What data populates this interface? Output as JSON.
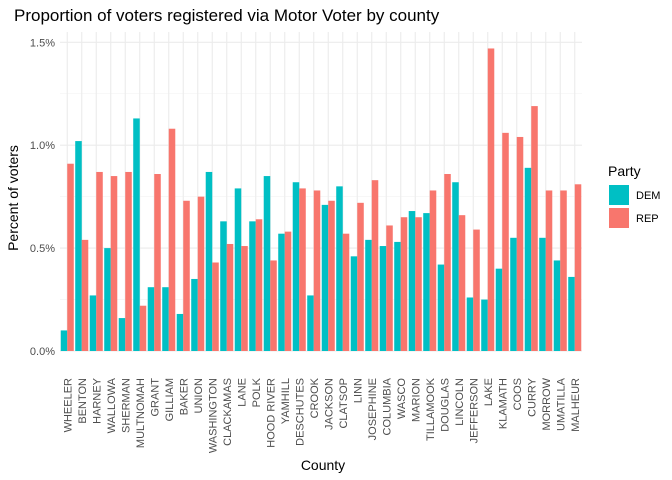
{
  "chart_data": {
    "type": "bar",
    "title": "Proportion of voters registered via Motor Voter by county",
    "xlabel": "County",
    "ylabel": "Percent of voters",
    "ylim": [
      0,
      1.55
    ],
    "y_ticks": [
      {
        "value": 0,
        "label": "0.0%"
      },
      {
        "value": 0.5,
        "label": "0.5%"
      },
      {
        "value": 1.0,
        "label": "1.0%"
      },
      {
        "value": 1.5,
        "label": "1.5%"
      }
    ],
    "grid": true,
    "legend_title": "Party",
    "legend_position": "right",
    "categories": [
      "WHEELER",
      "BENTON",
      "HARNEY",
      "WALLOWA",
      "SHERMAN",
      "MULTNOMAH",
      "GRANT",
      "GILLIAM",
      "BAKER",
      "UNION",
      "WASHINGTON",
      "CLACKAMAS",
      "LANE",
      "POLK",
      "HOOD RIVER",
      "YAMHILL",
      "DESCHUTES",
      "CROOK",
      "JACKSON",
      "CLATSOP",
      "LINN",
      "JOSEPHINE",
      "COLUMBIA",
      "WASCO",
      "MARION",
      "TILLAMOOK",
      "DOUGLAS",
      "LINCOLN",
      "JEFFERSON",
      "LAKE",
      "KLAMATH",
      "COOS",
      "CURRY",
      "MORROW",
      "UMATILLA",
      "MALHEUR"
    ],
    "series": [
      {
        "name": "DEM",
        "color": "#00BFC4",
        "values": [
          0.1,
          1.02,
          0.27,
          0.5,
          0.16,
          1.13,
          0.31,
          0.31,
          0.18,
          0.35,
          0.87,
          0.63,
          0.79,
          0.63,
          0.85,
          0.57,
          0.82,
          0.27,
          0.71,
          0.8,
          0.46,
          0.54,
          0.51,
          0.53,
          0.68,
          0.67,
          0.42,
          0.82,
          0.26,
          0.25,
          0.4,
          0.55,
          0.89,
          0.55,
          0.44,
          0.36
        ]
      },
      {
        "name": "REP",
        "color": "#F8766D",
        "values": [
          0.91,
          0.54,
          0.87,
          0.85,
          0.87,
          0.22,
          0.86,
          1.08,
          0.73,
          0.75,
          0.43,
          0.52,
          0.51,
          0.64,
          0.44,
          0.58,
          0.79,
          0.78,
          0.73,
          0.57,
          0.72,
          0.83,
          0.61,
          0.65,
          0.65,
          0.78,
          0.86,
          0.66,
          0.59,
          1.47,
          1.06,
          1.04,
          1.19,
          0.78,
          0.78,
          0.81
        ]
      }
    ]
  }
}
